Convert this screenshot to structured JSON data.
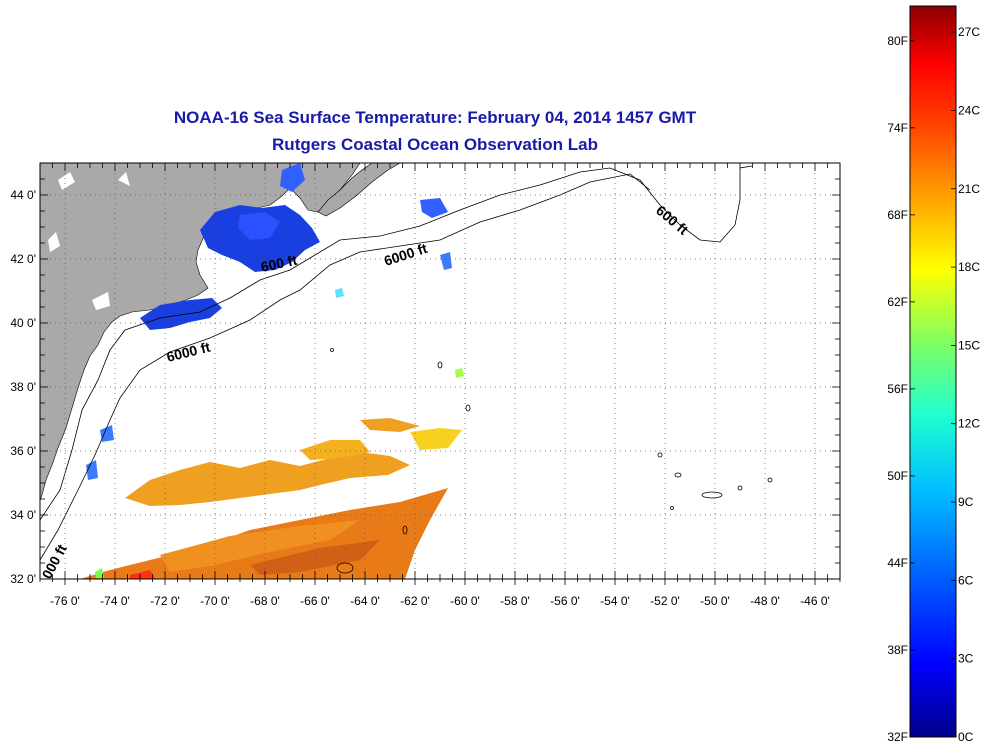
{
  "title": {
    "line1": "NOAA-16 Sea Surface Temperature:  February 04, 2014 1457 GMT",
    "line2": "Rutgers Coastal Ocean Observation Lab"
  },
  "map": {
    "lon_range": [
      -77,
      -45
    ],
    "lat_range": [
      32,
      45
    ],
    "lon_ticks": [
      "-76 0'",
      "-74 0'",
      "-72 0'",
      "-70 0'",
      "-68 0'",
      "-66 0'",
      "-64 0'",
      "-62 0'",
      "-60 0'",
      "-58 0'",
      "-56 0'",
      "-54 0'",
      "-52 0'",
      "-50 0'",
      "-48 0'",
      "-46 0'"
    ],
    "lat_ticks": [
      "44 0'",
      "42 0'",
      "40 0'",
      "38 0'",
      "36 0'",
      "34 0'",
      "32 0'"
    ],
    "grid": "dotted",
    "land_color": "#a9a9a9",
    "contour_labels": [
      "600 ft",
      "6000 ft",
      "6000 ft",
      "600 ft",
      "000 ft"
    ]
  },
  "colorbar": {
    "celsius": [
      "27C",
      "24C",
      "21C",
      "18C",
      "15C",
      "12C",
      "9C",
      "6C",
      "3C",
      "0C"
    ],
    "fahrenheit": [
      "80F",
      "74F",
      "68F",
      "62F",
      "56F",
      "50F",
      "44F",
      "38F",
      "32F"
    ],
    "colors": [
      "#00008b",
      "#0000ff",
      "#0060ff",
      "#00c0ff",
      "#20ffd0",
      "#80ff60",
      "#ffff00",
      "#ffa000",
      "#ff4000",
      "#ff0000",
      "#8b0000"
    ]
  }
}
